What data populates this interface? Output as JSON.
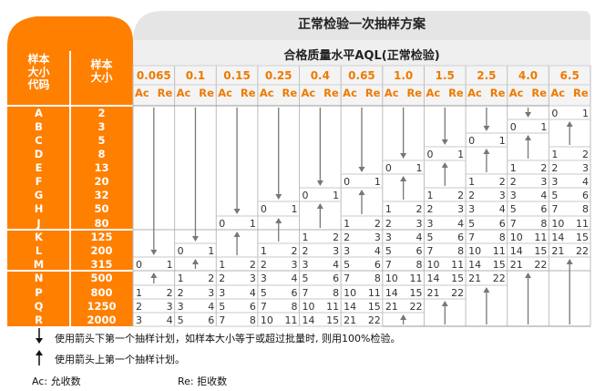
{
  "title": "正常检验一次抽样方案",
  "subtitle": "合格质量水平AQL(正常检验)",
  "head_left": {
    "code": [
      "样本",
      "大小",
      "代码"
    ],
    "size": [
      "样本",
      "大小"
    ]
  },
  "aql_levels": [
    "0.065",
    "0.1",
    "0.15",
    "0.25",
    "0.4",
    "0.65",
    "1.0",
    "1.5",
    "2.5",
    "4.0",
    "6.5"
  ],
  "ac": "Ac",
  "re": "Re",
  "row_groups": [
    {
      "codes": [
        "A",
        "B",
        "C",
        "D",
        "E",
        "F",
        "G",
        "H",
        "J"
      ],
      "sizes": [
        "2",
        "3",
        "5",
        "8",
        "13",
        "20",
        "32",
        "50",
        "80"
      ]
    },
    {
      "codes": [
        "K",
        "L",
        "M"
      ],
      "sizes": [
        "125",
        "200",
        "315"
      ]
    },
    {
      "codes": [
        "N",
        "P",
        "Q",
        "R"
      ],
      "sizes": [
        "500",
        "800",
        "1250",
        "2000"
      ]
    }
  ],
  "cells": [
    {
      "col": 0,
      "row": 11,
      "ac": "0",
      "re": "1"
    },
    {
      "col": 0,
      "row": 13,
      "ac": "1",
      "re": "2"
    },
    {
      "col": 0,
      "row": 14,
      "ac": "2",
      "re": "3"
    },
    {
      "col": 0,
      "row": 15,
      "ac": "3",
      "re": "4"
    },
    {
      "col": 1,
      "row": 10,
      "ac": "0",
      "re": "1"
    },
    {
      "col": 1,
      "row": 12,
      "ac": "1",
      "re": "2"
    },
    {
      "col": 1,
      "row": 13,
      "ac": "2",
      "re": "3"
    },
    {
      "col": 1,
      "row": 14,
      "ac": "3",
      "re": "4"
    },
    {
      "col": 1,
      "row": 15,
      "ac": "5",
      "re": "6"
    },
    {
      "col": 2,
      "row": 8,
      "ac": "0",
      "re": "1"
    },
    {
      "col": 2,
      "row": 11,
      "ac": "1",
      "re": "2"
    },
    {
      "col": 2,
      "row": 12,
      "ac": "2",
      "re": "3"
    },
    {
      "col": 2,
      "row": 13,
      "ac": "3",
      "re": "4"
    },
    {
      "col": 2,
      "row": 14,
      "ac": "5",
      "re": "6"
    },
    {
      "col": 2,
      "row": 15,
      "ac": "7",
      "re": "8"
    },
    {
      "col": 3,
      "row": 7,
      "ac": "0",
      "re": "1"
    },
    {
      "col": 3,
      "row": 10,
      "ac": "1",
      "re": "2"
    },
    {
      "col": 3,
      "row": 11,
      "ac": "2",
      "re": "3"
    },
    {
      "col": 3,
      "row": 12,
      "ac": "3",
      "re": "4"
    },
    {
      "col": 3,
      "row": 13,
      "ac": "5",
      "re": "6"
    },
    {
      "col": 3,
      "row": 14,
      "ac": "7",
      "re": "8"
    },
    {
      "col": 3,
      "row": 15,
      "ac": "10",
      "re": "11"
    },
    {
      "col": 4,
      "row": 6,
      "ac": "0",
      "re": "1"
    },
    {
      "col": 4,
      "row": 9,
      "ac": "1",
      "re": "2"
    },
    {
      "col": 4,
      "row": 10,
      "ac": "2",
      "re": "3"
    },
    {
      "col": 4,
      "row": 11,
      "ac": "3",
      "re": "4"
    },
    {
      "col": 4,
      "row": 12,
      "ac": "5",
      "re": "6"
    },
    {
      "col": 4,
      "row": 13,
      "ac": "7",
      "re": "8"
    },
    {
      "col": 4,
      "row": 14,
      "ac": "10",
      "re": "11"
    },
    {
      "col": 4,
      "row": 15,
      "ac": "14",
      "re": "15"
    },
    {
      "col": 5,
      "row": 5,
      "ac": "0",
      "re": "1"
    },
    {
      "col": 5,
      "row": 8,
      "ac": "1",
      "re": "2"
    },
    {
      "col": 5,
      "row": 9,
      "ac": "2",
      "re": "3"
    },
    {
      "col": 5,
      "row": 10,
      "ac": "3",
      "re": "4"
    },
    {
      "col": 5,
      "row": 11,
      "ac": "5",
      "re": "6"
    },
    {
      "col": 5,
      "row": 12,
      "ac": "7",
      "re": "8"
    },
    {
      "col": 5,
      "row": 13,
      "ac": "10",
      "re": "11"
    },
    {
      "col": 5,
      "row": 14,
      "ac": "14",
      "re": "15"
    },
    {
      "col": 5,
      "row": 15,
      "ac": "21",
      "re": "22"
    },
    {
      "col": 6,
      "row": 4,
      "ac": "0",
      "re": "1"
    },
    {
      "col": 6,
      "row": 7,
      "ac": "1",
      "re": "2"
    },
    {
      "col": 6,
      "row": 8,
      "ac": "2",
      "re": "3"
    },
    {
      "col": 6,
      "row": 9,
      "ac": "3",
      "re": "4"
    },
    {
      "col": 6,
      "row": 10,
      "ac": "5",
      "re": "6"
    },
    {
      "col": 6,
      "row": 11,
      "ac": "7",
      "re": "8"
    },
    {
      "col": 6,
      "row": 12,
      "ac": "10",
      "re": "11"
    },
    {
      "col": 6,
      "row": 13,
      "ac": "14",
      "re": "15"
    },
    {
      "col": 6,
      "row": 14,
      "ac": "21",
      "re": "22"
    },
    {
      "col": 7,
      "row": 3,
      "ac": "0",
      "re": "1"
    },
    {
      "col": 7,
      "row": 6,
      "ac": "1",
      "re": "2"
    },
    {
      "col": 7,
      "row": 7,
      "ac": "2",
      "re": "3"
    },
    {
      "col": 7,
      "row": 8,
      "ac": "3",
      "re": "4"
    },
    {
      "col": 7,
      "row": 9,
      "ac": "5",
      "re": "6"
    },
    {
      "col": 7,
      "row": 10,
      "ac": "7",
      "re": "8"
    },
    {
      "col": 7,
      "row": 11,
      "ac": "10",
      "re": "11"
    },
    {
      "col": 7,
      "row": 12,
      "ac": "14",
      "re": "15"
    },
    {
      "col": 7,
      "row": 13,
      "ac": "21",
      "re": "22"
    },
    {
      "col": 8,
      "row": 2,
      "ac": "0",
      "re": "1"
    },
    {
      "col": 8,
      "row": 5,
      "ac": "1",
      "re": "2"
    },
    {
      "col": 8,
      "row": 6,
      "ac": "2",
      "re": "3"
    },
    {
      "col": 8,
      "row": 7,
      "ac": "3",
      "re": "4"
    },
    {
      "col": 8,
      "row": 8,
      "ac": "5",
      "re": "6"
    },
    {
      "col": 8,
      "row": 9,
      "ac": "7",
      "re": "8"
    },
    {
      "col": 8,
      "row": 10,
      "ac": "10",
      "re": "11"
    },
    {
      "col": 8,
      "row": 11,
      "ac": "14",
      "re": "15"
    },
    {
      "col": 8,
      "row": 12,
      "ac": "21",
      "re": "22"
    },
    {
      "col": 9,
      "row": 1,
      "ac": "0",
      "re": "1"
    },
    {
      "col": 9,
      "row": 4,
      "ac": "1",
      "re": "2"
    },
    {
      "col": 9,
      "row": 5,
      "ac": "2",
      "re": "3"
    },
    {
      "col": 9,
      "row": 6,
      "ac": "3",
      "re": "4"
    },
    {
      "col": 9,
      "row": 7,
      "ac": "5",
      "re": "6"
    },
    {
      "col": 9,
      "row": 8,
      "ac": "7",
      "re": "8"
    },
    {
      "col": 9,
      "row": 9,
      "ac": "10",
      "re": "11"
    },
    {
      "col": 9,
      "row": 10,
      "ac": "14",
      "re": "15"
    },
    {
      "col": 9,
      "row": 11,
      "ac": "21",
      "re": "22"
    },
    {
      "col": 10,
      "row": 0,
      "ac": "0",
      "re": "1"
    },
    {
      "col": 10,
      "row": 3,
      "ac": "1",
      "re": "2"
    },
    {
      "col": 10,
      "row": 4,
      "ac": "2",
      "re": "3"
    },
    {
      "col": 10,
      "row": 5,
      "ac": "3",
      "re": "4"
    },
    {
      "col": 10,
      "row": 6,
      "ac": "5",
      "re": "6"
    },
    {
      "col": 10,
      "row": 7,
      "ac": "7",
      "re": "8"
    },
    {
      "col": 10,
      "row": 8,
      "ac": "10",
      "re": "11"
    },
    {
      "col": 10,
      "row": 9,
      "ac": "14",
      "re": "15"
    },
    {
      "col": 10,
      "row": 10,
      "ac": "21",
      "re": "22"
    }
  ],
  "arrows": [
    {
      "col": 0,
      "from": 0,
      "to": 10,
      "dir": "down"
    },
    {
      "col": 0,
      "from": 12,
      "to": 12,
      "dir": "up"
    },
    {
      "col": 1,
      "from": 0,
      "to": 9,
      "dir": "down"
    },
    {
      "col": 1,
      "from": 11,
      "to": 11,
      "dir": "up"
    },
    {
      "col": 2,
      "from": 0,
      "to": 7,
      "dir": "down"
    },
    {
      "col": 2,
      "from": 9,
      "to": 10,
      "dir": "up"
    },
    {
      "col": 3,
      "from": 0,
      "to": 6,
      "dir": "down"
    },
    {
      "col": 3,
      "from": 8,
      "to": 9,
      "dir": "up"
    },
    {
      "col": 4,
      "from": 0,
      "to": 5,
      "dir": "down"
    },
    {
      "col": 4,
      "from": 7,
      "to": 8,
      "dir": "up"
    },
    {
      "col": 5,
      "from": 0,
      "to": 4,
      "dir": "down"
    },
    {
      "col": 5,
      "from": 6,
      "to": 7,
      "dir": "up"
    },
    {
      "col": 6,
      "from": 0,
      "to": 3,
      "dir": "down"
    },
    {
      "col": 6,
      "from": 5,
      "to": 6,
      "dir": "up"
    },
    {
      "col": 6,
      "from": 15,
      "to": 15,
      "dir": "up"
    },
    {
      "col": 7,
      "from": 0,
      "to": 2,
      "dir": "down"
    },
    {
      "col": 7,
      "from": 4,
      "to": 5,
      "dir": "up"
    },
    {
      "col": 7,
      "from": 14,
      "to": 15,
      "dir": "up"
    },
    {
      "col": 8,
      "from": 0,
      "to": 1,
      "dir": "down"
    },
    {
      "col": 8,
      "from": 3,
      "to": 4,
      "dir": "up"
    },
    {
      "col": 8,
      "from": 13,
      "to": 15,
      "dir": "up"
    },
    {
      "col": 9,
      "from": 0,
      "to": 0,
      "dir": "down"
    },
    {
      "col": 9,
      "from": 2,
      "to": 3,
      "dir": "up"
    },
    {
      "col": 9,
      "from": 12,
      "to": 15,
      "dir": "up"
    },
    {
      "col": 10,
      "from": 1,
      "to": 2,
      "dir": "up"
    },
    {
      "col": 10,
      "from": 11,
      "to": 15,
      "dir": "up"
    }
  ],
  "legend": {
    "down_text": "使用箭头下第一个抽样计划，如样本大小等于或超过批量时, 则用100%检验。",
    "up_text": "使用箭头上第一个抽样计划。",
    "ac_text": "Ac: 允收数",
    "re_text": "Re: 拒收数"
  },
  "colors": {
    "orange": "#ff7f00",
    "orange_text": "#ee7a00",
    "grey_header": "#e7e7e7",
    "grid": "#bdbdbd",
    "border": "#9a9a9a"
  }
}
